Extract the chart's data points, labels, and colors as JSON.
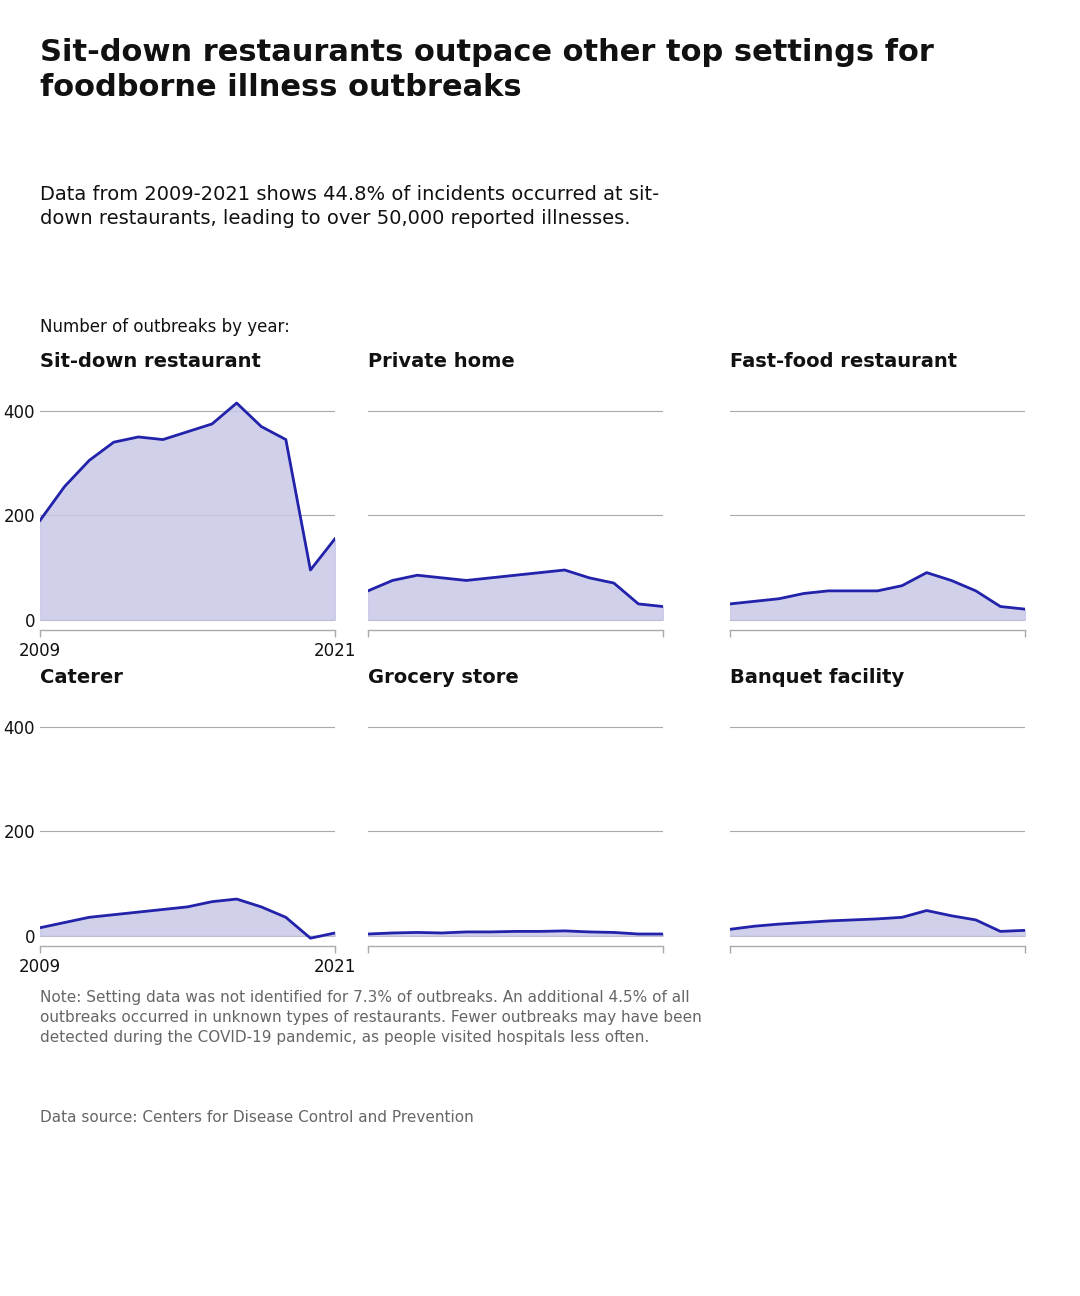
{
  "title": "Sit-down restaurants outpace other top settings for\nfoodborne illness outbreaks",
  "subtitle": "Data from 2009-2021 shows 44.8% of incidents occurred at sit-\ndown restaurants, leading to over 50,000 reported illnesses.",
  "section_label": "Number of outbreaks by year:",
  "note": "Note: Setting data was not identified for 7.3% of outbreaks. An additional 4.5% of all\noutbreaks occurred in unknown types of restaurants. Fewer outbreaks may have been\ndetected during the COVID-19 pandemic, as people visited hospitals less often.",
  "source": "Data source: Centers for Disease Control and Prevention",
  "years": [
    2009,
    2010,
    2011,
    2012,
    2013,
    2014,
    2015,
    2016,
    2017,
    2018,
    2019,
    2020,
    2021
  ],
  "panels": [
    {
      "title": "Sit-down restaurant",
      "data": [
        190,
        255,
        305,
        340,
        350,
        345,
        360,
        375,
        415,
        370,
        345,
        95,
        155
      ],
      "yticks": [
        0,
        200,
        400
      ],
      "ylim": [
        -20,
        440
      ],
      "show_xaxis": true,
      "row": 0,
      "col": 0
    },
    {
      "title": "Private home",
      "data": [
        55,
        75,
        85,
        80,
        75,
        80,
        85,
        90,
        95,
        80,
        70,
        30,
        25
      ],
      "yticks": [],
      "ylim": [
        -20,
        440
      ],
      "show_xaxis": false,
      "row": 0,
      "col": 1
    },
    {
      "title": "Fast-food restaurant",
      "data": [
        30,
        35,
        40,
        50,
        55,
        55,
        55,
        65,
        90,
        75,
        55,
        25,
        20
      ],
      "yticks": [],
      "ylim": [
        -20,
        440
      ],
      "show_xaxis": false,
      "row": 0,
      "col": 2
    },
    {
      "title": "Caterer",
      "data": [
        15,
        25,
        35,
        40,
        45,
        50,
        55,
        65,
        70,
        55,
        35,
        -5,
        5
      ],
      "yticks": [
        0,
        200,
        400
      ],
      "ylim": [
        -20,
        440
      ],
      "show_xaxis": true,
      "row": 1,
      "col": 0
    },
    {
      "title": "Grocery store",
      "data": [
        3,
        5,
        6,
        5,
        7,
        7,
        8,
        8,
        9,
        7,
        6,
        3,
        3
      ],
      "yticks": [],
      "ylim": [
        -20,
        440
      ],
      "show_xaxis": false,
      "row": 1,
      "col": 1
    },
    {
      "title": "Banquet facility",
      "data": [
        12,
        18,
        22,
        25,
        28,
        30,
        32,
        35,
        48,
        38,
        30,
        8,
        10
      ],
      "yticks": [],
      "ylim": [
        -20,
        440
      ],
      "show_xaxis": false,
      "row": 1,
      "col": 2
    }
  ],
  "line_color": "#2222AA",
  "fill_color": "#C8C8E8",
  "fill_alpha": 0.85,
  "background_color": "#FFFFFF",
  "grid_color": "#AAAAAA",
  "text_color": "#111111",
  "note_color": "#666666",
  "title_fontsize": 22,
  "subtitle_fontsize": 14,
  "panel_title_fontsize": 14,
  "tick_fontsize": 12,
  "note_fontsize": 11
}
